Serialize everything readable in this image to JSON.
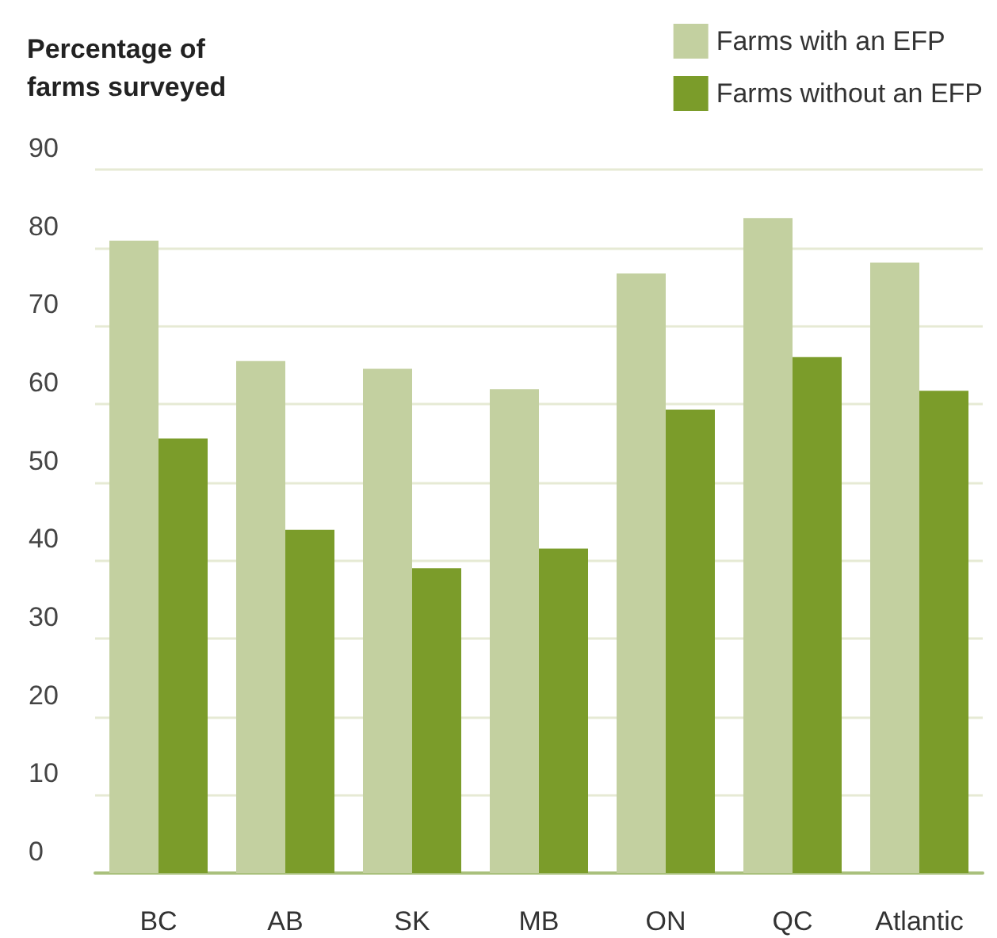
{
  "chart_data": {
    "type": "bar",
    "ylabel": "Percentage of farms surveyed",
    "categories": [
      "BC",
      "AB",
      "SK",
      "MB",
      "ON",
      "QC",
      "Atlantic"
    ],
    "series": [
      {
        "name": "Farms with an EFP",
        "color": "#c3d0a0",
        "values": [
          80.9,
          65.5,
          64.5,
          61.9,
          76.7,
          83.8,
          78.1
        ]
      },
      {
        "name": "Farms without an EFP",
        "color": "#7b9c2a",
        "values": [
          55.6,
          43.9,
          39.0,
          41.5,
          59.3,
          66.0,
          61.7
        ]
      }
    ],
    "ylim": [
      0,
      90
    ],
    "yticks": [
      0,
      10,
      20,
      30,
      40,
      50,
      60,
      70,
      80,
      90
    ],
    "grid": "y",
    "legend": "top right"
  }
}
